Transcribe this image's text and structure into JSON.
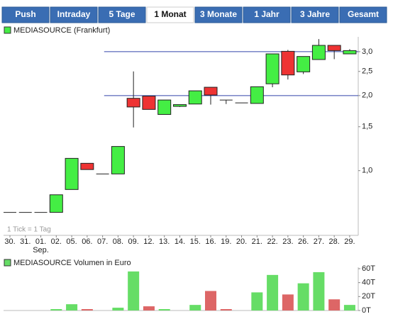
{
  "tabs": [
    "Push",
    "Intraday",
    "5 Tage",
    "1 Monat",
    "3 Monate",
    "1 Jahr",
    "3 Jahre",
    "Gesamt"
  ],
  "active_tab": 3,
  "chart_data": [
    {
      "type": "candlestick",
      "legend": "MEDIASOURCE (Frankfurt)",
      "annotation": "1 Tick = 1 Tag",
      "log_scale": true,
      "up_color": "#44ee44",
      "down_color": "#ee3333",
      "legend_color": "#44ee44",
      "categories": [
        "30.",
        "31.",
        "01.",
        "02.",
        "05.",
        "06.",
        "07.",
        "08.",
        "09.",
        "12.",
        "13.",
        "14.",
        "15.",
        "16.",
        "19.",
        "20.",
        "21.",
        "22.",
        "23.",
        "26.",
        "27.",
        "28.",
        "29."
      ],
      "sublabels": [
        null,
        null,
        "Sep.",
        null,
        null,
        null,
        null,
        null,
        null,
        null,
        null,
        null,
        null,
        null,
        null,
        null,
        null,
        null,
        null,
        null,
        null,
        null,
        null
      ],
      "open": [
        0.68,
        0.68,
        0.68,
        0.68,
        0.84,
        1.07,
        0.97,
        0.97,
        1.95,
        1.99,
        1.68,
        1.81,
        1.85,
        2.16,
        1.92,
        1.87,
        1.86,
        2.23,
        3.01,
        2.49,
        2.79,
        3.18,
        2.94
      ],
      "high": [
        0.68,
        0.68,
        0.68,
        0.8,
        1.12,
        1.07,
        0.97,
        1.25,
        2.5,
        1.99,
        1.92,
        1.84,
        2.09,
        2.16,
        1.92,
        1.87,
        2.17,
        2.94,
        3.05,
        2.87,
        3.37,
        3.18,
        3.07
      ],
      "low": [
        0.68,
        0.68,
        0.68,
        0.68,
        0.84,
        1.01,
        0.97,
        0.97,
        1.49,
        1.76,
        1.68,
        1.8,
        1.85,
        1.84,
        1.85,
        1.87,
        1.86,
        2.16,
        2.32,
        2.44,
        2.79,
        2.8,
        2.94
      ],
      "close": [
        0.68,
        0.68,
        0.68,
        0.8,
        1.12,
        1.01,
        0.97,
        1.25,
        1.8,
        1.76,
        1.92,
        1.84,
        2.09,
        2.01,
        1.92,
        1.87,
        2.17,
        2.94,
        2.42,
        2.87,
        3.18,
        3.03,
        3.03
      ],
      "reference_lines": [
        3.0,
        2.0
      ],
      "reference_color": "#3344aa",
      "ylim": [
        0.55,
        3.44
      ],
      "yticks": [
        {
          "value": 1.0,
          "label": "1,0"
        },
        {
          "value": 1.5,
          "label": "1,5"
        },
        {
          "value": 2.0,
          "label": "2,0"
        },
        {
          "value": 2.5,
          "label": "2,5"
        },
        {
          "value": 3.0,
          "label": "3,0"
        }
      ]
    },
    {
      "type": "bar",
      "legend": "MEDIASOURCE Volumen in Euro",
      "legend_color": "#66dd66",
      "values": [
        0,
        0,
        0,
        2,
        9,
        2,
        0,
        4,
        56,
        6,
        2,
        0,
        8,
        28,
        2,
        0,
        26,
        51,
        23,
        39,
        55,
        16,
        8
      ],
      "colors": [
        "#66dd66",
        "#66dd66",
        "#66dd66",
        "#66dd66",
        "#66dd66",
        "#dd6666",
        "#66dd66",
        "#66dd66",
        "#66dd66",
        "#dd6666",
        "#66dd66",
        "#66dd66",
        "#66dd66",
        "#dd6666",
        "#dd6666",
        "#66dd66",
        "#66dd66",
        "#66dd66",
        "#dd6666",
        "#66dd66",
        "#66dd66",
        "#dd6666",
        "#66dd66"
      ],
      "ylim": [
        0,
        60
      ],
      "yticks": [
        {
          "value": 0,
          "label": "0T"
        },
        {
          "value": 20,
          "label": "20T"
        },
        {
          "value": 40,
          "label": "40T"
        },
        {
          "value": 60,
          "label": "60T"
        }
      ]
    }
  ]
}
